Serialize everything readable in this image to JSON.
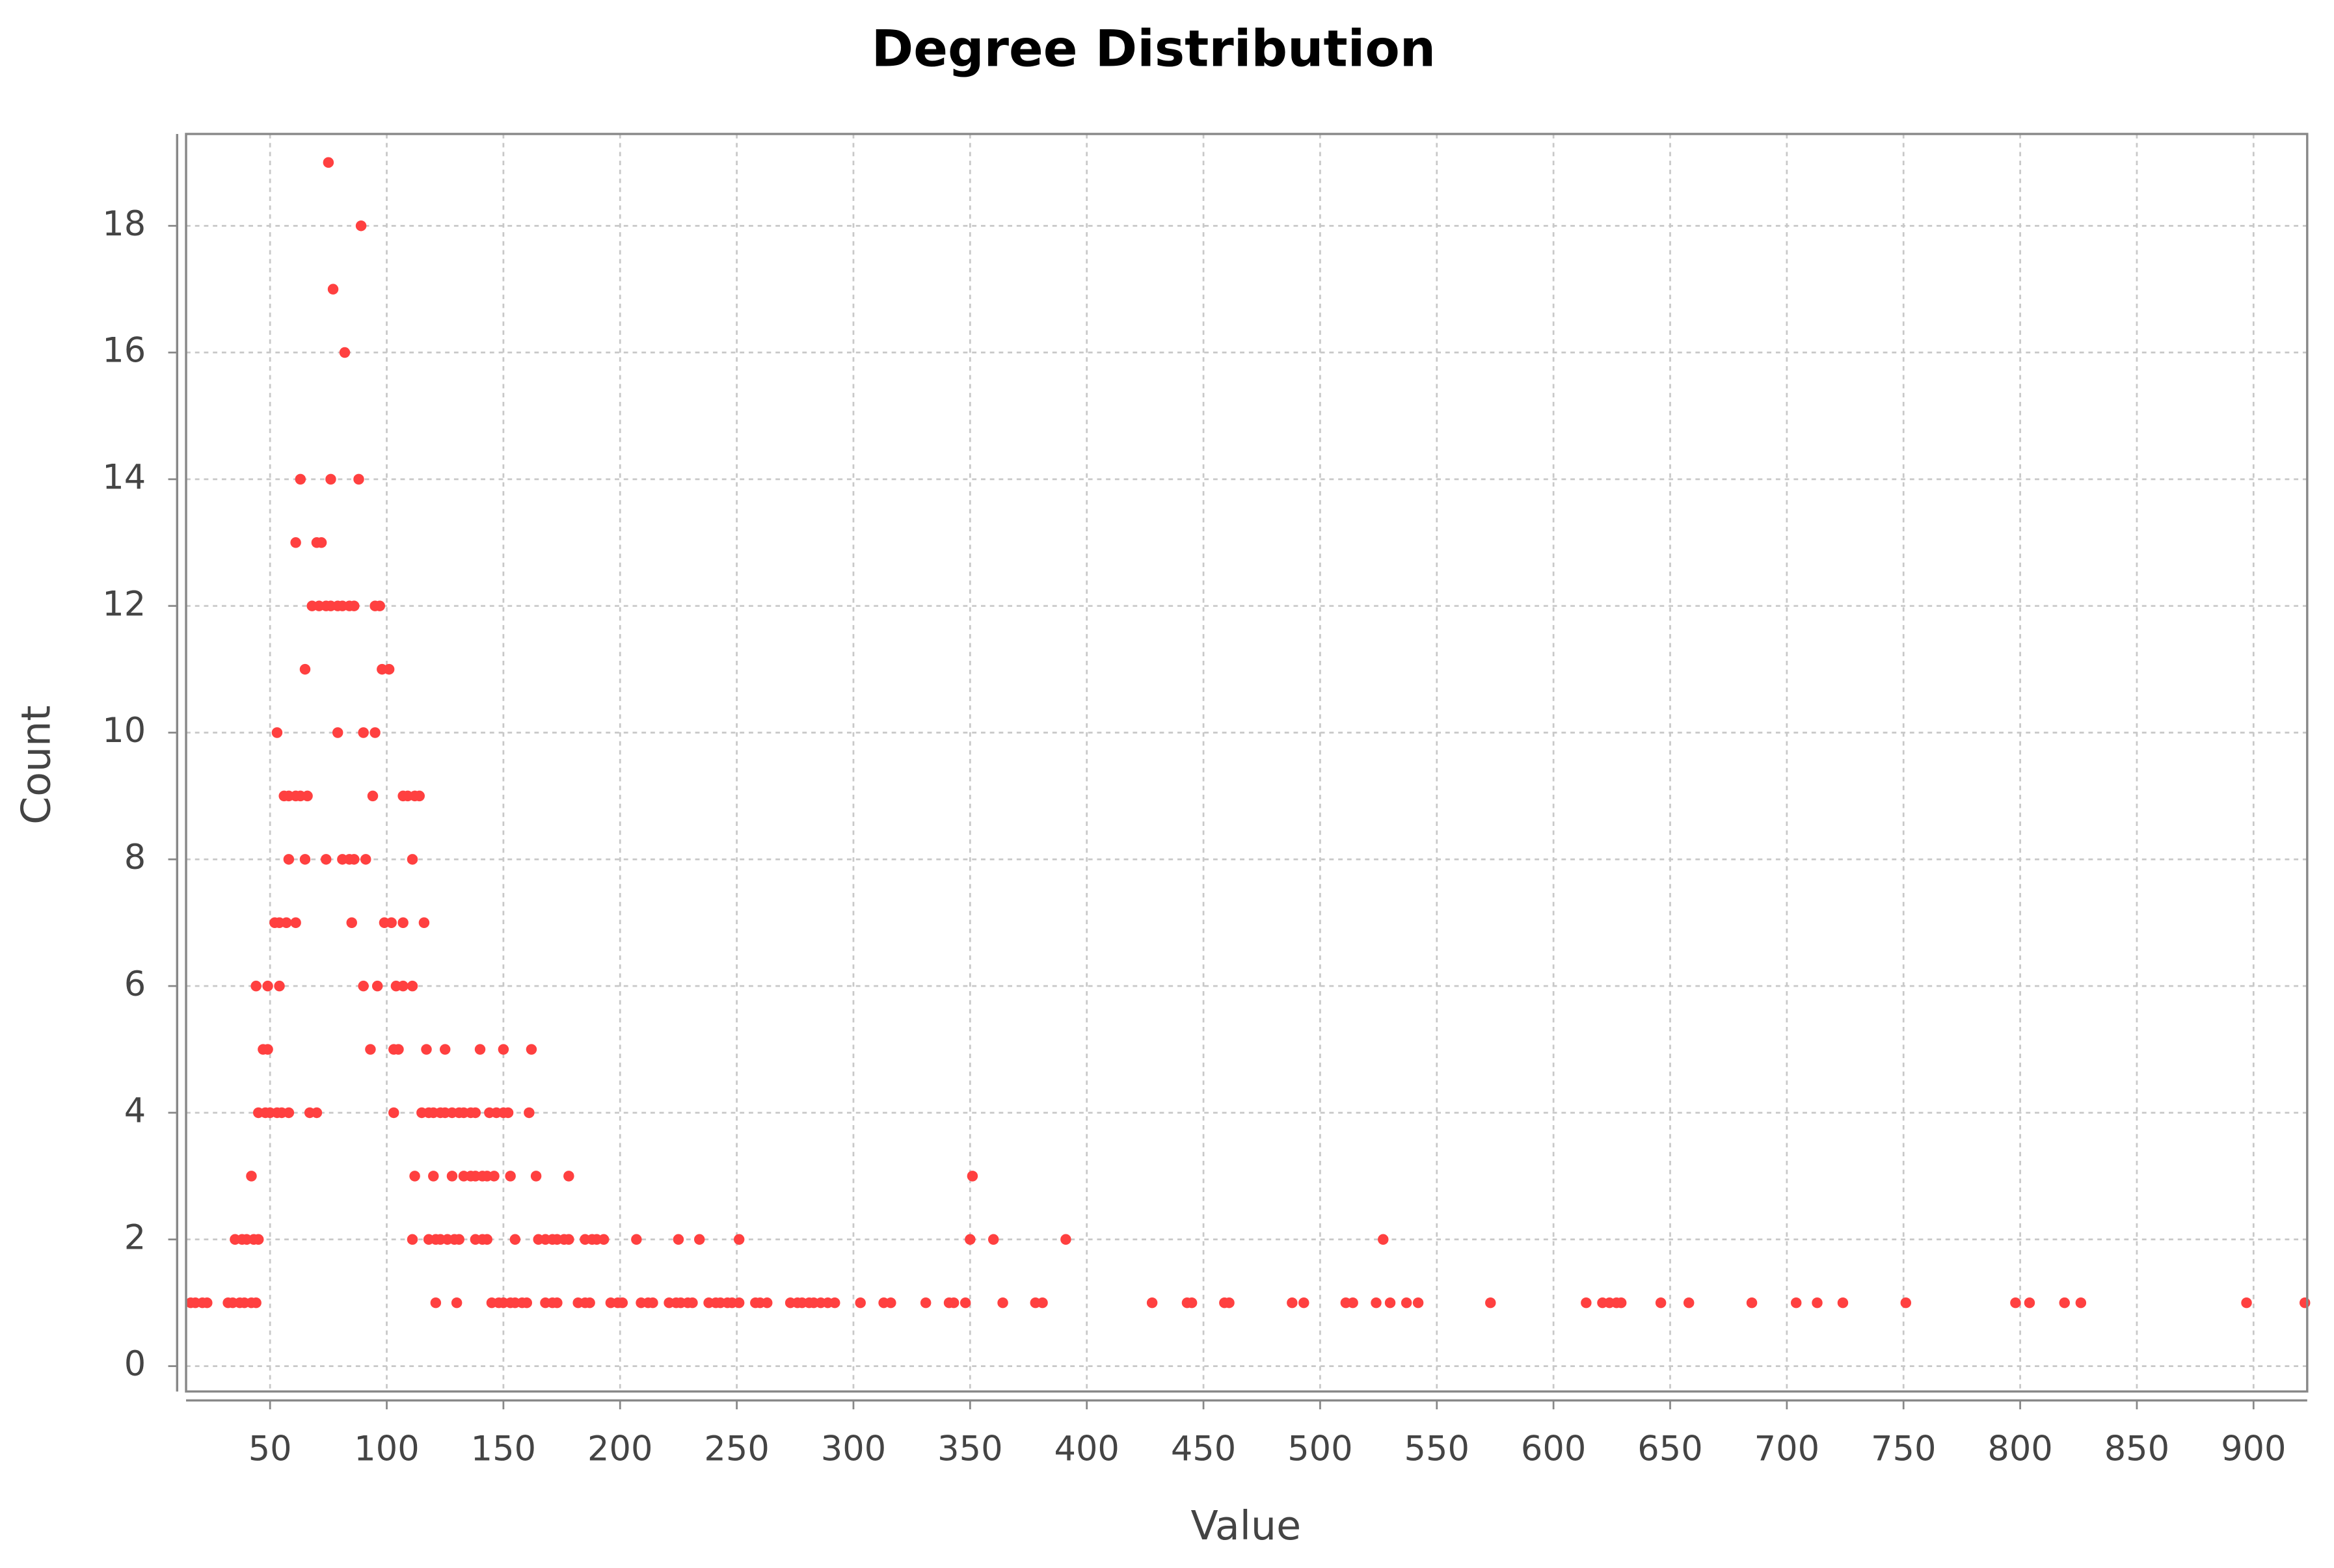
{
  "chart_data": {
    "type": "scatter",
    "title": "Degree Distribution",
    "x_label": "Value",
    "y_label": "Count",
    "xlim": [
      14,
      923
    ],
    "ylim": [
      -0.4,
      19.45
    ],
    "xticks": [
      50,
      100,
      150,
      200,
      250,
      300,
      350,
      400,
      450,
      500,
      550,
      600,
      650,
      700,
      750,
      800,
      850,
      900
    ],
    "yticks": [
      0,
      2,
      4,
      6,
      8,
      10,
      12,
      14,
      16,
      18
    ],
    "grid": true,
    "series": [
      {
        "color": "#ff4040",
        "x": [
          75,
          89,
          77,
          82,
          63,
          76,
          88,
          61,
          70,
          72,
          68,
          71,
          74,
          76,
          79,
          81,
          84,
          86,
          95,
          97,
          65,
          98,
          101,
          53,
          79,
          90,
          95,
          56,
          58,
          61,
          63,
          66,
          94,
          107,
          109,
          112,
          114,
          58,
          65,
          74,
          81,
          84,
          86,
          91,
          111,
          52,
          54,
          57,
          61,
          85,
          99,
          102,
          107,
          116,
          44,
          49,
          54,
          90,
          96,
          104,
          107,
          111,
          47,
          49,
          93,
          103,
          105,
          117,
          125,
          140,
          150,
          162,
          45,
          48,
          50,
          53,
          55,
          58,
          67,
          70,
          103,
          115,
          118,
          120,
          123,
          125,
          128,
          131,
          133,
          136,
          138,
          144,
          147,
          150,
          152,
          161,
          42,
          112,
          120,
          128,
          133,
          136,
          138,
          141,
          143,
          146,
          153,
          164,
          178,
          351,
          35,
          38,
          40,
          43,
          45,
          111,
          118,
          121,
          123,
          126,
          129,
          131,
          138,
          141,
          143,
          155,
          165,
          168,
          171,
          173,
          176,
          178,
          185,
          188,
          190,
          193,
          207,
          225,
          234,
          251,
          350,
          360,
          391,
          527,
          16,
          18,
          21,
          23,
          32,
          34,
          37,
          39,
          42,
          44,
          121,
          130,
          145,
          148,
          150,
          153,
          155,
          158,
          160,
          168,
          171,
          173,
          182,
          185,
          187,
          196,
          199,
          201,
          209,
          212,
          214,
          221,
          224,
          226,
          229,
          231,
          238,
          241,
          243,
          246,
          248,
          251,
          258,
          260,
          263,
          273,
          276,
          278,
          281,
          283,
          286,
          289,
          292,
          303,
          313,
          316,
          331,
          341,
          343,
          348,
          364,
          378,
          381,
          428,
          443,
          445,
          459,
          461,
          488,
          493,
          511,
          514,
          524,
          530,
          537,
          542,
          573,
          614,
          621,
          624,
          627,
          629,
          646,
          658,
          685,
          704,
          713,
          724,
          751,
          798,
          804,
          819,
          826,
          897,
          922
        ],
        "values": [
          19,
          18,
          17,
          16,
          14,
          14,
          14,
          13,
          13,
          13,
          12,
          12,
          12,
          12,
          12,
          12,
          12,
          12,
          12,
          12,
          11,
          11,
          11,
          10,
          10,
          10,
          10,
          9,
          9,
          9,
          9,
          9,
          9,
          9,
          9,
          9,
          9,
          8,
          8,
          8,
          8,
          8,
          8,
          8,
          8,
          7,
          7,
          7,
          7,
          7,
          7,
          7,
          7,
          7,
          6,
          6,
          6,
          6,
          6,
          6,
          6,
          6,
          5,
          5,
          5,
          5,
          5,
          5,
          5,
          5,
          5,
          5,
          4,
          4,
          4,
          4,
          4,
          4,
          4,
          4,
          4,
          4,
          4,
          4,
          4,
          4,
          4,
          4,
          4,
          4,
          4,
          4,
          4,
          4,
          4,
          4,
          3,
          3,
          3,
          3,
          3,
          3,
          3,
          3,
          3,
          3,
          3,
          3,
          3,
          3,
          2,
          2,
          2,
          2,
          2,
          2,
          2,
          2,
          2,
          2,
          2,
          2,
          2,
          2,
          2,
          2,
          2,
          2,
          2,
          2,
          2,
          2,
          2,
          2,
          2,
          2,
          2,
          2,
          2,
          2,
          2,
          2,
          2,
          2,
          1,
          1,
          1,
          1,
          1,
          1,
          1,
          1,
          1,
          1,
          1,
          1,
          1,
          1,
          1,
          1,
          1,
          1,
          1,
          1,
          1,
          1,
          1,
          1,
          1,
          1,
          1,
          1,
          1,
          1,
          1,
          1,
          1,
          1,
          1,
          1,
          1,
          1,
          1,
          1,
          1,
          1,
          1,
          1,
          1,
          1,
          1,
          1,
          1,
          1,
          1,
          1,
          1,
          1,
          1,
          1,
          1,
          1,
          1,
          1,
          1,
          1,
          1,
          1,
          1,
          1,
          1,
          1,
          1,
          1,
          1,
          1,
          1,
          1,
          1,
          1,
          1,
          1,
          1,
          1,
          1,
          1,
          1,
          1,
          1,
          1,
          1,
          1,
          1,
          1,
          1,
          1,
          1,
          1,
          1
        ]
      }
    ]
  }
}
